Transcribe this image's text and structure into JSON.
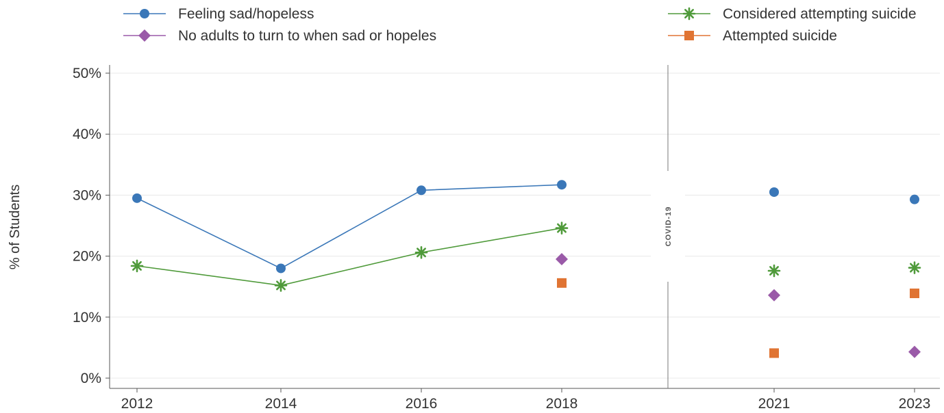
{
  "chart_data": {
    "type": "line",
    "ylabel": "% of Students",
    "xlabel": "",
    "ylim": [
      0,
      50
    ],
    "y_ticks": [
      "0%",
      "10%",
      "20%",
      "30%",
      "40%",
      "50%"
    ],
    "categories": [
      "2012",
      "2014",
      "2016",
      "2018",
      "2021",
      "2023"
    ],
    "x_values": [
      2012,
      2014,
      2016,
      2018,
      2021,
      2023
    ],
    "grid": true,
    "legend_position": "top",
    "break_label": "COVID-19",
    "series": [
      {
        "name": "Feeling sad/hopeless",
        "marker": "circle",
        "color": "#3a77b8",
        "values": [
          29.5,
          18.0,
          30.8,
          31.7,
          30.5,
          29.3
        ],
        "connected_upto_index": 3
      },
      {
        "name": "Considered attempting suicide",
        "marker": "star",
        "color": "#4f9a3a",
        "values": [
          18.4,
          15.2,
          20.6,
          24.6,
          17.6,
          18.1
        ],
        "connected_upto_index": 3
      },
      {
        "name": "No adults to turn to when sad or hopeles",
        "marker": "diamond",
        "color": "#9a5aa8",
        "values": [
          null,
          null,
          null,
          19.5,
          13.6,
          4.3
        ],
        "connected_upto_index": -1
      },
      {
        "name": "Attempted suicide",
        "marker": "square",
        "color": "#e07433",
        "values": [
          null,
          null,
          null,
          15.6,
          4.1,
          13.9
        ],
        "connected_upto_index": -1
      }
    ]
  }
}
